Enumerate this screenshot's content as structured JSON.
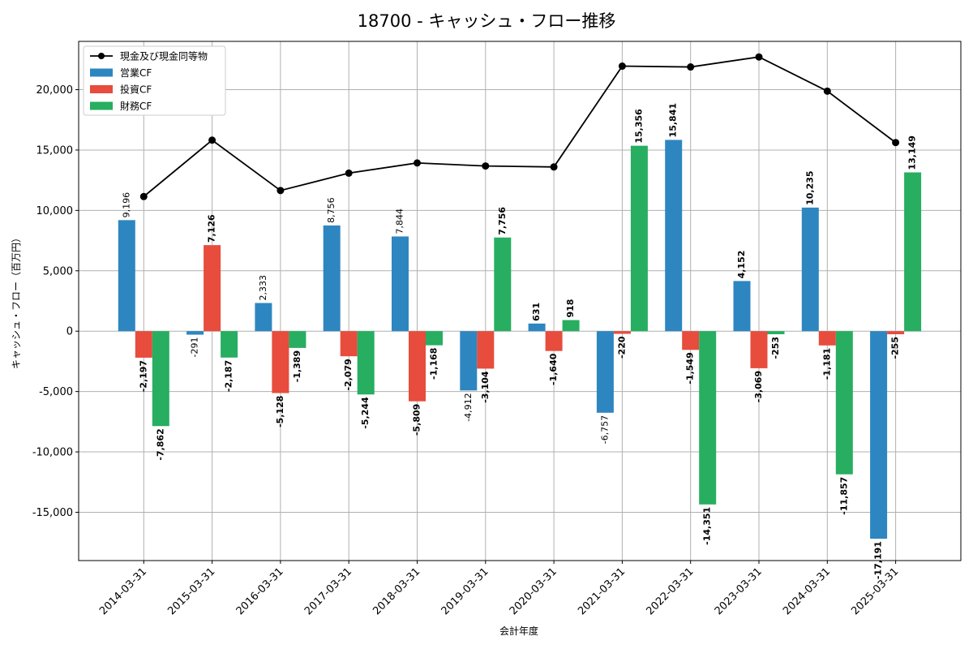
{
  "chart_data": {
    "type": "bar",
    "title": "18700 - キャッシュ・フロー推移",
    "xlabel": "会計年度",
    "ylabel": "キャッシュ・フロー（百万円）",
    "ylim": [
      -19000,
      24000
    ],
    "yticks": [
      -15000,
      -10000,
      -5000,
      0,
      5000,
      10000,
      15000,
      20000
    ],
    "ytick_labels": [
      "-15,000",
      "-10,000",
      "-5,000",
      "0",
      "5,000",
      "10,000",
      "15,000",
      "20,000"
    ],
    "grid": true,
    "legend_position": "top-left",
    "categories": [
      "2014-03-31",
      "2015-03-31",
      "2016-03-31",
      "2017-03-31",
      "2018-03-31",
      "2019-03-31",
      "2020-03-31",
      "2021-03-31",
      "2022-03-31",
      "2023-03-31",
      "2024-03-31",
      "2025-03-31"
    ],
    "series": [
      {
        "name": "営業CF",
        "kind": "bar",
        "color": "#2e86c1",
        "values": [
          9196,
          -291,
          2333,
          8756,
          7844,
          -4912,
          631,
          -6757,
          15841,
          4152,
          10235,
          -17191
        ],
        "labels": [
          "9,196",
          "-291",
          "2,333",
          "8,756",
          "7,844",
          "-4,912",
          "631",
          "-6,757",
          "15,841",
          "4,152",
          "10,235",
          "-17,191"
        ],
        "bold": [
          false,
          false,
          false,
          false,
          false,
          false,
          true,
          false,
          true,
          true,
          true,
          true
        ]
      },
      {
        "name": "投資CF",
        "kind": "bar",
        "color": "#e74c3c",
        "values": [
          -2197,
          7126,
          -5128,
          -2079,
          -5809,
          -3104,
          -1640,
          -220,
          -1549,
          -3069,
          -1181,
          -255
        ],
        "labels": [
          "-2,197",
          "7,126",
          "-5,128",
          "-2,079",
          "-5,809",
          "-3,104",
          "-1,640",
          "-220",
          "-1,549",
          "-3,069",
          "-1,181",
          "-255"
        ],
        "bold": [
          true,
          true,
          true,
          true,
          true,
          true,
          true,
          true,
          true,
          true,
          true,
          true
        ]
      },
      {
        "name": "財務CF",
        "kind": "bar",
        "color": "#27ae60",
        "values": [
          -7862,
          -2187,
          -1389,
          -5244,
          -1168,
          7756,
          918,
          15356,
          -14351,
          -253,
          -11857,
          13149
        ],
        "labels": [
          "-7,862",
          "-2,187",
          "-1,389",
          "-5,244",
          "-1,168",
          "7,756",
          "918",
          "15,356",
          "-14,351",
          "-253",
          "-11,857",
          "13,149"
        ],
        "bold": [
          true,
          true,
          true,
          true,
          true,
          true,
          true,
          true,
          true,
          true,
          true,
          true
        ]
      },
      {
        "name": "現金及び現金同等物",
        "kind": "line",
        "color": "#000000",
        "values": [
          11150,
          15820,
          11650,
          13090,
          13930,
          13680,
          13600,
          21950,
          21880,
          22710,
          19880,
          15620
        ]
      }
    ]
  }
}
